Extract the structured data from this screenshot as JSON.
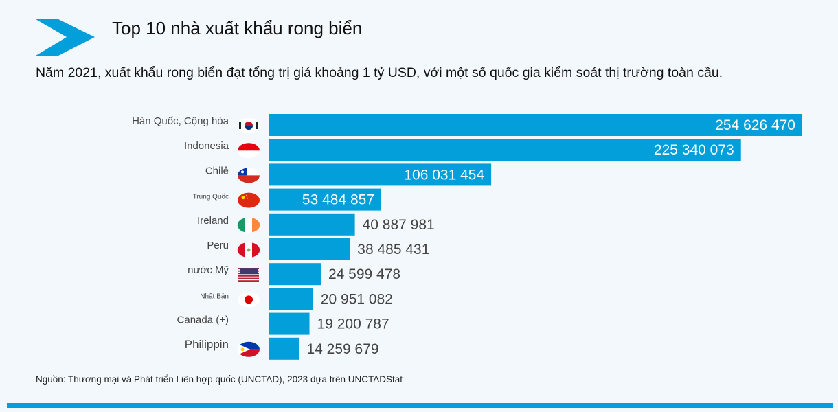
{
  "title": "Top 10 nhà xuất khẩu rong biển",
  "subtitle": "Năm 2021, xuất khẩu rong biển đạt tổng trị giá khoảng 1 tỷ USD, với một số quốc gia kiểm soát thị trường toàn cầu.",
  "source": "Nguồn: Thương mại và Phát triển Liên hợp quốc (UNCTAD), 2023 dựa trên UNCTADStat",
  "colors": {
    "bar": "#029fda",
    "accent": "#029fda",
    "background": "#f3f8fc",
    "label_outside": "#444444",
    "label_inside": "#ffffff"
  },
  "chart_data": {
    "type": "bar",
    "orientation": "horizontal",
    "title": "Top 10 nhà xuất khẩu rong biển",
    "xlabel": "",
    "ylabel": "",
    "grid": false,
    "xlim": [
      0,
      254626470
    ],
    "categories": [
      "Hàn Quốc, Cộng hòa",
      "Indonesia",
      "Chilê",
      "Trung Quốc",
      "Ireland",
      "Peru",
      "nước Mỹ",
      "Nhật Bản",
      "Canada (+)",
      "Philippin"
    ],
    "flags": [
      "south-korea-flag-icon",
      "indonesia-flag-icon",
      "chile-flag-icon",
      "china-flag-icon",
      "ireland-flag-icon",
      "peru-flag-icon",
      "usa-flag-icon",
      "japan-flag-icon",
      "canada-flag-icon",
      "philippines-flag-icon"
    ],
    "values": [
      254626470,
      225340073,
      106031454,
      53484857,
      40887981,
      38485431,
      24599478,
      20951082,
      19200787,
      14259679
    ],
    "value_labels": [
      "254 626 470",
      "225 340 073",
      "106 031 454",
      "53 484 857",
      "40 887 981",
      "38 485 431",
      "24 599 478",
      "20 951 082",
      "19 200 787",
      "14 259 679"
    ]
  }
}
